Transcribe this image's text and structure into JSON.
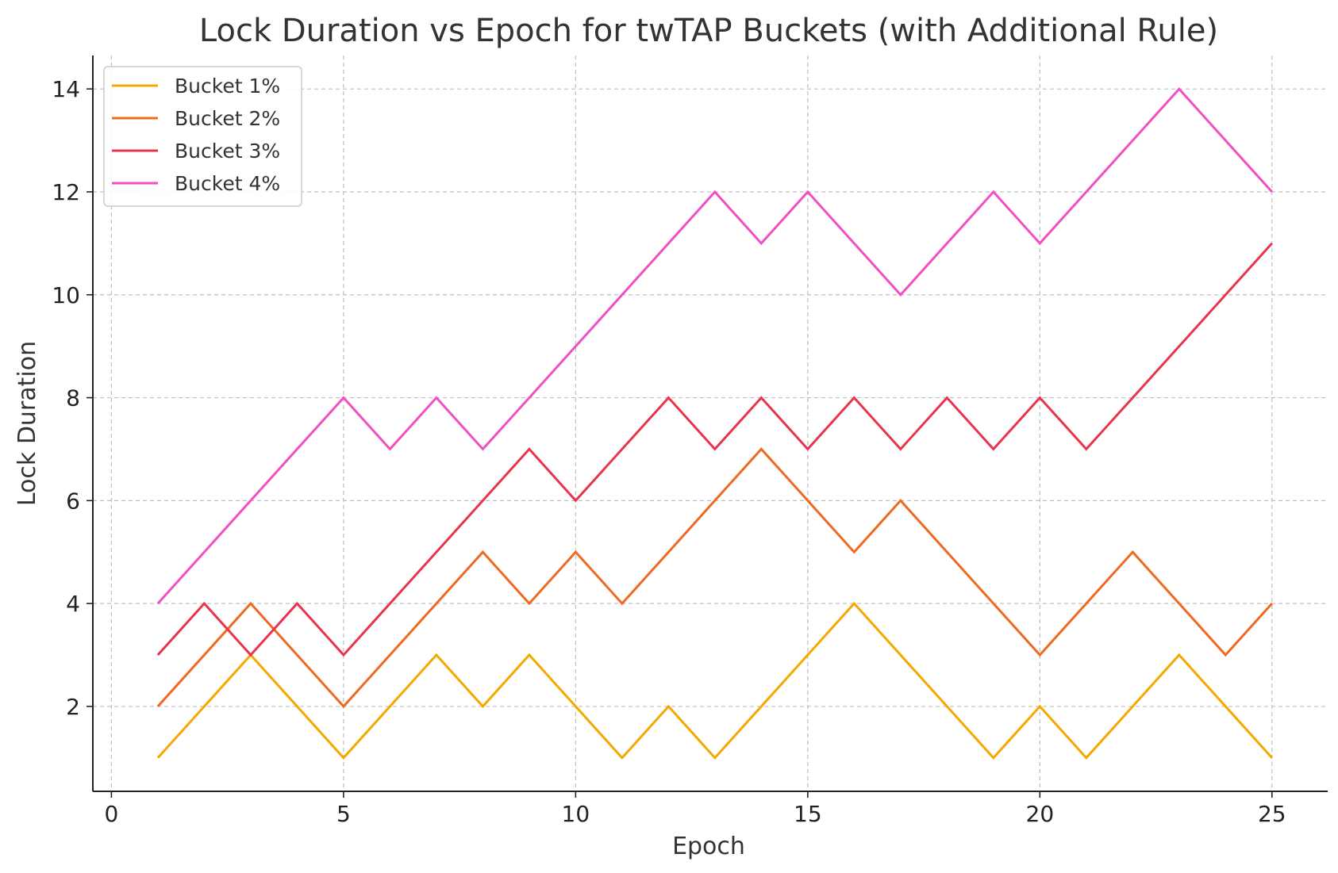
{
  "chart_data": {
    "type": "line",
    "title": "Lock Duration vs Epoch for twTAP Buckets (with Additional Rule)",
    "xlabel": "Epoch",
    "ylabel": "Lock Duration",
    "xlim": [
      -0.4,
      26.2
    ],
    "ylim": [
      0.35,
      14.65
    ],
    "xticks": [
      0,
      5,
      10,
      15,
      20,
      25
    ],
    "yticks": [
      2,
      4,
      6,
      8,
      10,
      12,
      14
    ],
    "grid": true,
    "legend_position": "upper-left",
    "x": [
      1,
      2,
      3,
      4,
      5,
      6,
      7,
      8,
      9,
      10,
      11,
      12,
      13,
      14,
      15,
      16,
      17,
      18,
      19,
      20,
      21,
      22,
      23,
      24,
      25
    ],
    "series": [
      {
        "name": "Bucket 1%",
        "color": "#F5A800",
        "values": [
          1,
          2,
          3,
          2,
          1,
          2,
          3,
          2,
          3,
          2,
          1,
          2,
          1,
          2,
          3,
          4,
          3,
          2,
          1,
          2,
          1,
          2,
          3,
          2,
          1
        ]
      },
      {
        "name": "Bucket 2%",
        "color": "#EE6A23",
        "values": [
          2,
          3,
          4,
          3,
          2,
          3,
          4,
          5,
          4,
          5,
          4,
          5,
          6,
          7,
          6,
          5,
          6,
          5,
          4,
          3,
          4,
          5,
          4,
          3,
          4
        ]
      },
      {
        "name": "Bucket 3%",
        "color": "#E8344E",
        "values": [
          3,
          4,
          3,
          4,
          3,
          4,
          5,
          6,
          7,
          6,
          7,
          8,
          7,
          8,
          7,
          8,
          7,
          8,
          7,
          8,
          7,
          8,
          9,
          10,
          11
        ]
      },
      {
        "name": "Bucket 4%",
        "color": "#F050C4",
        "values": [
          4,
          5,
          6,
          7,
          8,
          7,
          8,
          7,
          8,
          9,
          10,
          11,
          12,
          11,
          12,
          11,
          10,
          11,
          12,
          11,
          12,
          13,
          14,
          13,
          12
        ]
      }
    ]
  }
}
